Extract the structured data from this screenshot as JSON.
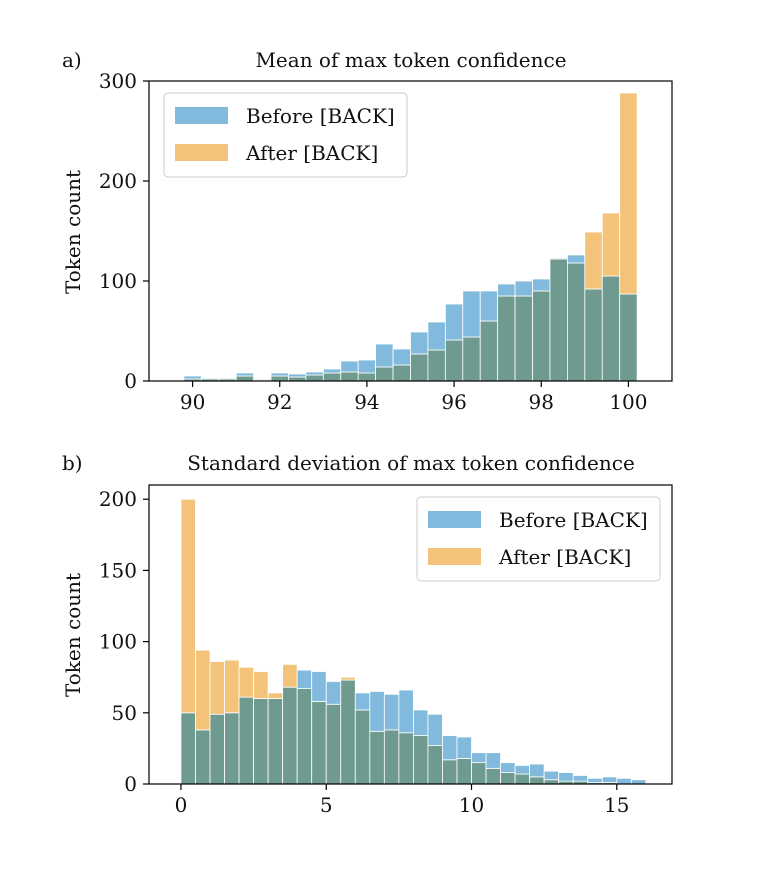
{
  "colors": {
    "before": "#6baed6",
    "after": "#f0b860",
    "overlap": "#6f9a8f",
    "axis": "#000000",
    "bar_edge": "#ffffff"
  },
  "chart_data": [
    {
      "panel": "a)",
      "type": "bar",
      "title": "Mean of max token confidence",
      "xlabel": "",
      "ylabel": "Token count",
      "xlim": [
        89.0,
        101.0
      ],
      "ylim": [
        0,
        300
      ],
      "xticks": [
        90,
        92,
        94,
        96,
        98,
        100
      ],
      "yticks": [
        0,
        100,
        200,
        300
      ],
      "bin_width": 0.4,
      "bin_start": 89.8,
      "legend_position": "top-left",
      "series": [
        {
          "name": "Before [BACK]",
          "values": [
            5,
            3,
            3,
            8,
            2,
            8,
            7,
            9,
            12,
            20,
            21,
            37,
            32,
            49,
            59,
            77,
            90,
            90,
            97,
            100,
            102,
            123,
            126,
            92,
            105,
            87
          ]
        },
        {
          "name": "After [BACK]",
          "values": [
            2,
            2,
            2,
            5,
            1,
            5,
            4,
            6,
            8,
            9,
            8,
            14,
            16,
            27,
            31,
            41,
            44,
            60,
            85,
            85,
            90,
            122,
            118,
            149,
            168,
            288
          ]
        }
      ]
    },
    {
      "panel": "b)",
      "type": "bar",
      "title": "Standard deviation of max token confidence",
      "xlabel": "",
      "ylabel": "Token count",
      "xlim": [
        -1.1,
        16.9
      ],
      "ylim": [
        0,
        210
      ],
      "xticks": [
        0,
        5,
        10,
        15
      ],
      "yticks": [
        0,
        50,
        100,
        150,
        200
      ],
      "bin_width": 0.5,
      "bin_start": 0.0,
      "legend_position": "top-right",
      "series": [
        {
          "name": "Before [BACK]",
          "values": [
            50,
            38,
            49,
            50,
            61,
            60,
            60,
            68,
            80,
            79,
            72,
            73,
            64,
            65,
            63,
            66,
            52,
            49,
            34,
            33,
            22,
            22,
            15,
            13,
            14,
            9,
            8,
            6,
            4,
            5,
            4,
            3
          ]
        },
        {
          "name": "After [BACK]",
          "values": [
            200,
            94,
            86,
            87,
            82,
            79,
            64,
            84,
            67,
            58,
            56,
            75,
            52,
            37,
            38,
            36,
            34,
            27,
            17,
            18,
            15,
            11,
            8,
            7,
            5,
            3,
            2,
            2,
            1,
            1,
            0,
            0
          ]
        }
      ]
    }
  ]
}
